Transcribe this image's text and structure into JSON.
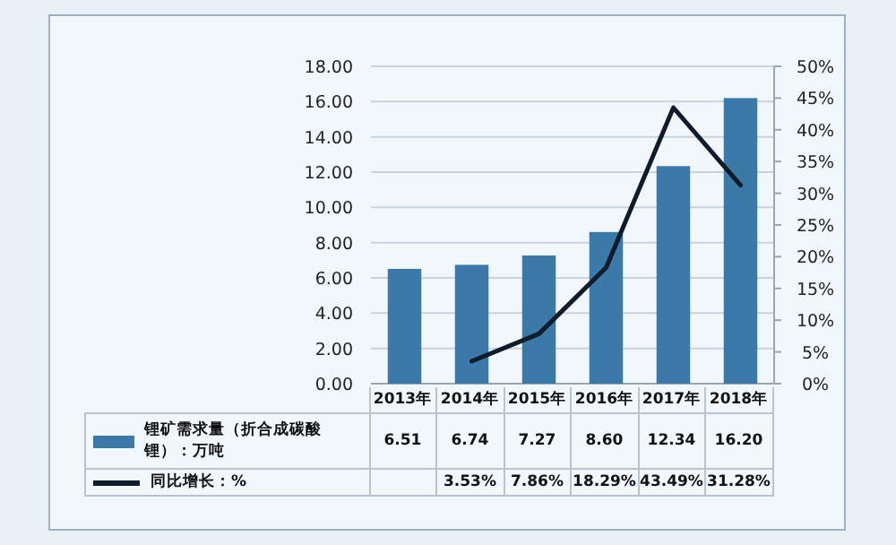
{
  "chart_data": {
    "type": "bar",
    "categories": [
      "2013年",
      "2014年",
      "2015年",
      "2016年",
      "2017年",
      "2018年"
    ],
    "series": [
      {
        "name": "锂矿需求量（折合成碳酸锂）：万吨",
        "color": "#3b79a9",
        "values": [
          6.51,
          6.74,
          7.27,
          8.6,
          12.34,
          16.2
        ],
        "value_labels": [
          "6.51",
          "6.74",
          "7.27",
          "8.60",
          "12.34",
          "16.20"
        ]
      },
      {
        "name": "同比增长：%",
        "type": "line",
        "axis": "y2",
        "color": "#0e1c2c",
        "values": [
          null,
          3.53,
          7.86,
          18.29,
          43.49,
          31.28
        ],
        "value_labels": [
          null,
          "3.53%",
          "7.86%",
          "18.29%",
          "43.49%",
          "31.28%"
        ]
      }
    ],
    "ylim": [
      0,
      18
    ],
    "yticks": [
      {
        "value": 0,
        "label": "0.00"
      },
      {
        "value": 2,
        "label": "2.00"
      },
      {
        "value": 4,
        "label": "4.00"
      },
      {
        "value": 6,
        "label": "6.00"
      },
      {
        "value": 8,
        "label": "8.00"
      },
      {
        "value": 10,
        "label": "10.00"
      },
      {
        "value": 12,
        "label": "12.00"
      },
      {
        "value": 14,
        "label": "14.00"
      },
      {
        "value": 16,
        "label": "16.00"
      },
      {
        "value": 18,
        "label": "18.00"
      }
    ],
    "y2lim": [
      0,
      50
    ],
    "y2ticks": [
      {
        "value": 0,
        "label": "0%"
      },
      {
        "value": 5,
        "label": "5%"
      },
      {
        "value": 10,
        "label": "10%"
      },
      {
        "value": 15,
        "label": "15%"
      },
      {
        "value": 20,
        "label": "20%"
      },
      {
        "value": 25,
        "label": "25%"
      },
      {
        "value": 30,
        "label": "30%"
      },
      {
        "value": 35,
        "label": "35%"
      },
      {
        "value": 40,
        "label": "40%"
      },
      {
        "value": 45,
        "label": "45%"
      },
      {
        "value": 50,
        "label": "50%"
      }
    ],
    "grid": "y",
    "legend": "bottom"
  }
}
